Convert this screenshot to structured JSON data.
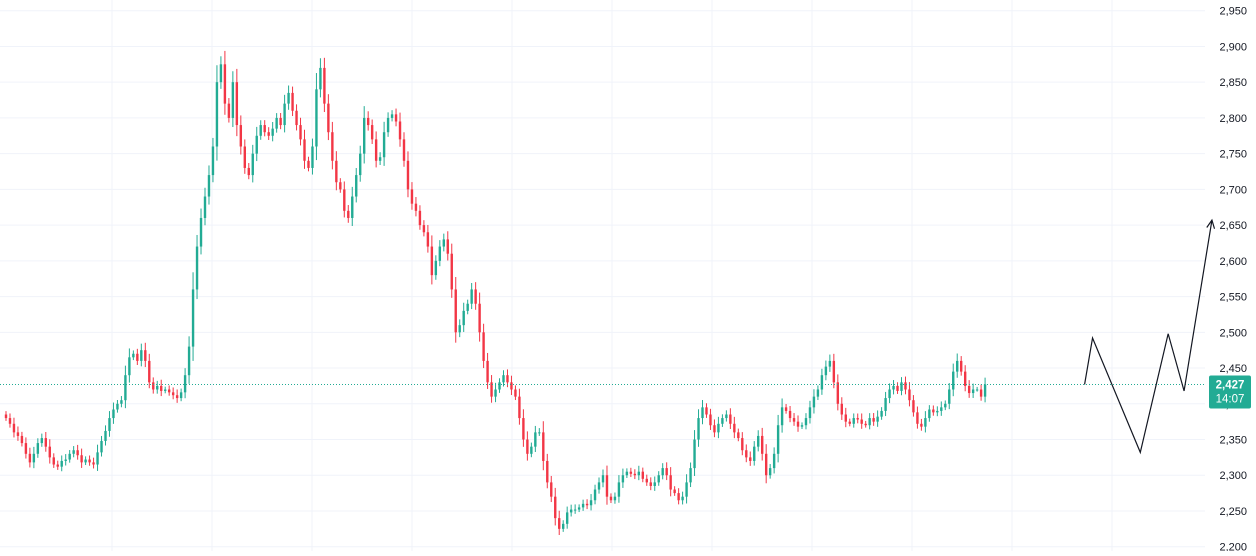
{
  "colors": {
    "up": "#22ab94",
    "down": "#f23645",
    "grid": "#f0f3fa",
    "axis_text": "#131722",
    "price_line": "#22ab94",
    "projection": "#131722"
  },
  "price_badge": {
    "price": "2,427",
    "countdown": "14:07",
    "value": 2427
  },
  "chart_data": {
    "type": "candlestick",
    "title": "",
    "xlabel": "",
    "ylabel": "",
    "ylim": [
      2194,
      2965
    ],
    "y_ticks": [
      {
        "value": 2200,
        "label": "2,200"
      },
      {
        "value": 2250,
        "label": "2,250"
      },
      {
        "value": 2300,
        "label": "2,300"
      },
      {
        "value": 2350,
        "label": "2,350"
      },
      {
        "value": 2400,
        "label": "2,400"
      },
      {
        "value": 2450,
        "label": "2,450"
      },
      {
        "value": 2500,
        "label": "2,500"
      },
      {
        "value": 2550,
        "label": "2,550"
      },
      {
        "value": 2600,
        "label": "2,600"
      },
      {
        "value": 2650,
        "label": "2,650"
      },
      {
        "value": 2700,
        "label": "2,700"
      },
      {
        "value": 2750,
        "label": "2,750"
      },
      {
        "value": 2800,
        "label": "2,800"
      },
      {
        "value": 2850,
        "label": "2,850"
      },
      {
        "value": 2900,
        "label": "2,900"
      },
      {
        "value": 2950,
        "label": "2,950"
      }
    ],
    "grid": true,
    "legend": "none",
    "candle_closes": [
      2380,
      2372,
      2360,
      2355,
      2345,
      2330,
      2318,
      2330,
      2345,
      2352,
      2340,
      2325,
      2315,
      2312,
      2320,
      2322,
      2330,
      2335,
      2328,
      2318,
      2322,
      2318,
      2315,
      2332,
      2348,
      2362,
      2380,
      2392,
      2400,
      2405,
      2440,
      2465,
      2470,
      2460,
      2475,
      2460,
      2430,
      2420,
      2425,
      2418,
      2420,
      2416,
      2412,
      2408,
      2416,
      2440,
      2480,
      2560,
      2620,
      2660,
      2690,
      2720,
      2760,
      2850,
      2875,
      2820,
      2800,
      2850,
      2790,
      2760,
      2730,
      2720,
      2750,
      2775,
      2790,
      2780,
      2775,
      2785,
      2800,
      2790,
      2820,
      2835,
      2810,
      2790,
      2770,
      2740,
      2730,
      2760,
      2840,
      2870,
      2820,
      2780,
      2740,
      2710,
      2700,
      2670,
      2660,
      2690,
      2720,
      2750,
      2800,
      2790,
      2770,
      2740,
      2745,
      2780,
      2800,
      2805,
      2795,
      2770,
      2740,
      2700,
      2680,
      2670,
      2650,
      2640,
      2620,
      2580,
      2600,
      2620,
      2630,
      2610,
      2560,
      2500,
      2510,
      2530,
      2540,
      2560,
      2540,
      2500,
      2460,
      2430,
      2410,
      2420,
      2430,
      2440,
      2430,
      2420,
      2410,
      2380,
      2350,
      2330,
      2340,
      2360,
      2360,
      2320,
      2290,
      2270,
      2240,
      2225,
      2232,
      2248,
      2252,
      2252,
      2255,
      2260,
      2258,
      2265,
      2280,
      2290,
      2300,
      2270,
      2265,
      2270,
      2290,
      2300,
      2305,
      2302,
      2300,
      2305,
      2295,
      2290,
      2285,
      2290,
      2300,
      2310,
      2300,
      2280,
      2275,
      2265,
      2270,
      2290,
      2310,
      2350,
      2380,
      2395,
      2385,
      2370,
      2360,
      2372,
      2380,
      2385,
      2372,
      2360,
      2352,
      2335,
      2325,
      2320,
      2340,
      2355,
      2330,
      2300,
      2310,
      2330,
      2370,
      2395,
      2390,
      2380,
      2375,
      2368,
      2370,
      2380,
      2395,
      2410,
      2420,
      2440,
      2452,
      2460,
      2430,
      2400,
      2385,
      2375,
      2372,
      2380,
      2378,
      2372,
      2370,
      2380,
      2375,
      2382,
      2390,
      2408,
      2420,
      2425,
      2418,
      2430,
      2420,
      2405,
      2388,
      2372,
      2368,
      2380,
      2392,
      2388,
      2390,
      2395,
      2400,
      2420,
      2445,
      2460,
      2445,
      2425,
      2415,
      2420,
      2420,
      2410,
      2427
    ],
    "projection": [
      {
        "bar": 271,
        "value": 2427
      },
      {
        "bar": 273,
        "value": 2492
      },
      {
        "bar": 285,
        "value": 2332
      },
      {
        "bar": 292,
        "value": 2498
      },
      {
        "bar": 296,
        "value": 2418
      },
      {
        "bar": 303,
        "value": 2657
      }
    ],
    "last_price": 2427
  }
}
